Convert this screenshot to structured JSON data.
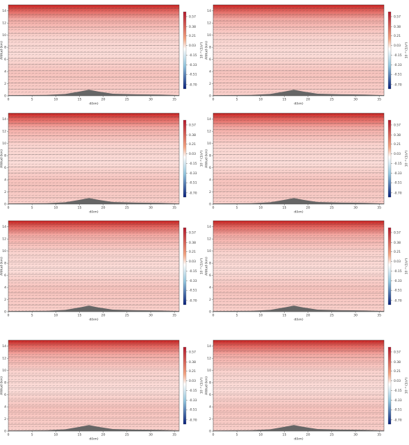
{
  "chart_data": [
    {
      "type": "contour",
      "xlabel": "d(km)",
      "ylabel": "Altitud (km)",
      "colorbar_label": "10⁻³ (1/s²)",
      "xlim": [
        0,
        36
      ],
      "ylim": [
        0,
        15
      ],
      "xticks": [
        0,
        5,
        10,
        15,
        20,
        25,
        30,
        35
      ],
      "yticks": [
        0,
        2,
        4,
        6,
        8,
        10,
        12,
        14
      ],
      "clim": [
        -0.78,
        0.66
      ],
      "cticks": [
        0.57,
        0.38,
        0.21,
        0.03,
        -0.15,
        -0.33,
        -0.51,
        {
          "value": -0.7,
          "label": "-0.70"
        }
      ],
      "terrain": {
        "x": [
          0,
          8,
          12,
          15,
          17,
          19,
          22,
          27,
          32,
          36
        ],
        "y": [
          0.1,
          0.15,
          0.3,
          0.7,
          1.0,
          0.7,
          0.35,
          0.25,
          0.2,
          0.1
        ]
      },
      "terrain_color": "#666666"
    },
    {
      "type": "contour",
      "xlabel": "d(km)",
      "ylabel": "Altitud (km)",
      "colorbar_label": "10⁻³ (1/s²)",
      "xlim": [
        0,
        36
      ],
      "ylim": [
        0,
        15
      ],
      "xticks": [
        0,
        5,
        10,
        15,
        20,
        25,
        30,
        35
      ],
      "yticks": [
        0,
        2,
        4,
        6,
        8,
        10,
        12,
        14
      ],
      "clim": [
        -0.78,
        0.66
      ],
      "cticks": [
        0.57,
        0.38,
        0.21,
        0.03,
        -0.15,
        -0.33,
        -0.51,
        {
          "value": -0.7,
          "label": "-0.70"
        }
      ],
      "terrain": {
        "x": [
          0,
          8,
          12,
          15,
          17,
          19,
          22,
          27,
          32,
          36
        ],
        "y": [
          0.1,
          0.15,
          0.3,
          0.7,
          1.0,
          0.7,
          0.35,
          0.25,
          0.2,
          0.1
        ]
      },
      "terrain_color": "#666666"
    },
    {
      "type": "contour",
      "xlabel": "d(km)",
      "ylabel": "Altitud (km)",
      "colorbar_label": "10⁻³ (1/s²)",
      "xlim": [
        0,
        36
      ],
      "ylim": [
        0,
        15
      ],
      "xticks": [
        0,
        5,
        10,
        15,
        20,
        25,
        30,
        35
      ],
      "yticks": [
        0,
        2,
        4,
        6,
        8,
        10,
        12,
        14
      ],
      "clim": [
        -0.78,
        0.66
      ],
      "cticks": [
        0.57,
        0.38,
        0.21,
        0.03,
        -0.15,
        -0.33,
        -0.51,
        {
          "value": -0.7,
          "label": "-0.70"
        }
      ],
      "terrain": {
        "x": [
          0,
          8,
          12,
          15,
          17,
          19,
          22,
          27,
          32,
          36
        ],
        "y": [
          0.1,
          0.15,
          0.3,
          0.7,
          1.0,
          0.7,
          0.35,
          0.25,
          0.2,
          0.1
        ]
      },
      "terrain_color": "#666666"
    },
    {
      "type": "contour",
      "xlabel": "d(km)",
      "ylabel": "Altitud (km)",
      "colorbar_label": "10⁻³ (1/s²)",
      "xlim": [
        0,
        36
      ],
      "ylim": [
        0,
        15
      ],
      "xticks": [
        0,
        5,
        10,
        15,
        20,
        25,
        30,
        35
      ],
      "yticks": [
        0,
        2,
        4,
        6,
        8,
        10,
        12,
        14
      ],
      "clim": [
        -0.78,
        0.66
      ],
      "cticks": [
        0.57,
        0.38,
        0.21,
        0.03,
        -0.15,
        -0.33,
        -0.51,
        {
          "value": -0.7,
          "label": "-0.70"
        }
      ],
      "terrain": {
        "x": [
          0,
          8,
          12,
          15,
          17,
          19,
          22,
          27,
          32,
          36
        ],
        "y": [
          0.1,
          0.15,
          0.3,
          0.7,
          1.0,
          0.7,
          0.35,
          0.25,
          0.2,
          0.1
        ]
      },
      "terrain_color": "#666666"
    },
    {
      "type": "contour",
      "xlabel": "d(km)",
      "ylabel": "Altitud (km)",
      "colorbar_label": "10⁻³ (1/s²)",
      "xlim": [
        0,
        36
      ],
      "ylim": [
        0,
        15
      ],
      "xticks": [
        0,
        5,
        10,
        15,
        20,
        25,
        30,
        35
      ],
      "yticks": [
        0,
        2,
        4,
        6,
        8,
        10,
        12,
        14
      ],
      "clim": [
        -0.78,
        0.66
      ],
      "cticks": [
        0.57,
        0.38,
        0.21,
        0.03,
        -0.15,
        -0.33,
        -0.51,
        {
          "value": -0.7,
          "label": "-0.70"
        }
      ],
      "terrain": {
        "x": [
          0,
          8,
          12,
          15,
          17,
          19,
          22,
          27,
          32,
          36
        ],
        "y": [
          0.1,
          0.15,
          0.3,
          0.7,
          1.0,
          0.7,
          0.35,
          0.25,
          0.2,
          0.1
        ]
      },
      "terrain_color": "#666666"
    },
    {
      "type": "contour",
      "xlabel": "d(km)",
      "ylabel": "Altitud (km)",
      "colorbar_label": "10⁻³ (1/s²)",
      "xlim": [
        0,
        36
      ],
      "ylim": [
        0,
        15
      ],
      "xticks": [
        0,
        5,
        10,
        15,
        20,
        25,
        30,
        35
      ],
      "yticks": [
        0,
        2,
        4,
        6,
        8,
        10,
        12,
        14
      ],
      "clim": [
        -0.78,
        0.66
      ],
      "cticks": [
        0.57,
        0.38,
        0.21,
        0.03,
        -0.15,
        -0.33,
        -0.51,
        {
          "value": -0.7,
          "label": "-0.70"
        }
      ],
      "terrain": {
        "x": [
          0,
          8,
          12,
          15,
          17,
          19,
          22,
          27,
          32,
          36
        ],
        "y": [
          0.1,
          0.15,
          0.3,
          0.7,
          1.0,
          0.7,
          0.35,
          0.25,
          0.2,
          0.1
        ]
      },
      "terrain_color": "#666666"
    },
    {
      "type": "contour",
      "xlabel": "d(km)",
      "ylabel": "Altitud (km)",
      "colorbar_label": "10⁻³ (1/s²)",
      "xlim": [
        0,
        36
      ],
      "ylim": [
        0,
        15
      ],
      "xticks": [
        0,
        5,
        10,
        15,
        20,
        25,
        30,
        35
      ],
      "yticks": [
        0,
        2,
        4,
        6,
        8,
        10,
        12,
        14
      ],
      "clim": [
        -0.78,
        0.66
      ],
      "cticks": [
        0.57,
        0.38,
        0.21,
        0.03,
        -0.15,
        -0.33,
        -0.51,
        {
          "value": -0.7,
          "label": "-0.70"
        }
      ],
      "terrain": {
        "x": [
          0,
          8,
          12,
          15,
          17,
          19,
          22,
          27,
          32,
          36
        ],
        "y": [
          0.1,
          0.15,
          0.3,
          0.7,
          1.0,
          0.7,
          0.35,
          0.25,
          0.2,
          0.1
        ]
      },
      "terrain_color": "#666666"
    },
    {
      "type": "contour",
      "xlabel": "d(km)",
      "ylabel": "Altitud (km)",
      "colorbar_label": "10⁻³ (1/s²)",
      "xlim": [
        0,
        36
      ],
      "ylim": [
        0,
        15
      ],
      "xticks": [
        0,
        5,
        10,
        15,
        20,
        25,
        30,
        35
      ],
      "yticks": [
        0,
        2,
        4,
        6,
        8,
        10,
        12,
        14
      ],
      "clim": [
        -0.78,
        0.66
      ],
      "cticks": [
        0.57,
        0.38,
        0.21,
        0.03,
        -0.15,
        -0.33,
        -0.51,
        {
          "value": -0.7,
          "label": "-0.70"
        }
      ],
      "terrain": {
        "x": [
          0,
          8,
          12,
          15,
          17,
          19,
          22,
          27,
          32,
          36
        ],
        "y": [
          0.1,
          0.15,
          0.3,
          0.7,
          1.0,
          0.7,
          0.35,
          0.25,
          0.2,
          0.1
        ]
      },
      "terrain_color": "#666666"
    }
  ]
}
